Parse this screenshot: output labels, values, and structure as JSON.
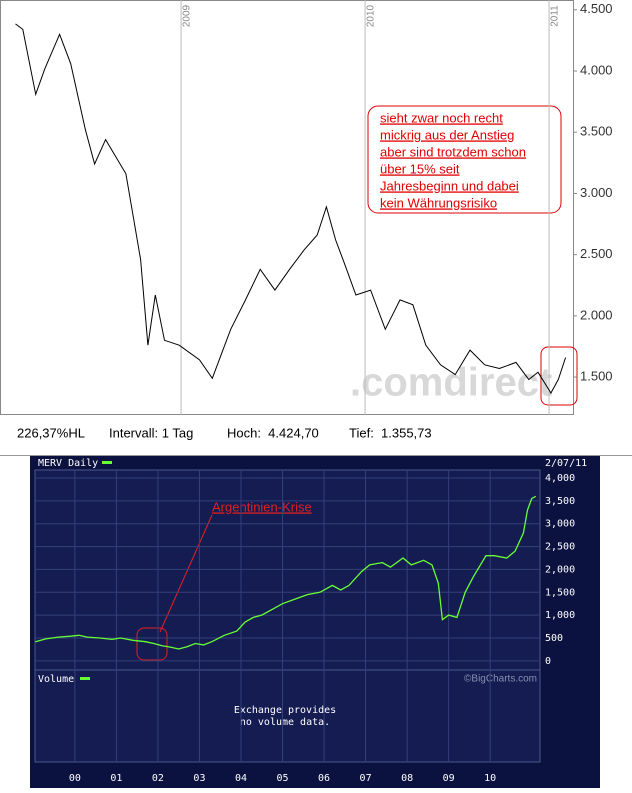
{
  "chart_data": [
    {
      "type": "line",
      "stats": [
        "226,37%HL",
        "Intervall: 1 Tag",
        "Hoch:  4.424,70",
        "Tief:  1.355,73"
      ],
      "annotation_lines": [
        "sieht zwar noch recht",
        "mickrig aus der Anstieg",
        "aber sind trotzdem schon",
        "über 15% seit",
        "Jahresbeginn und dabei",
        "kein Währungsrisiko"
      ],
      "watermark": ".comdirect",
      "xlim": [
        2008.016,
        2011.13
      ],
      "xticks": [
        2009,
        2010,
        2011
      ],
      "ylim": [
        1190,
        4580
      ],
      "yticks": [
        {
          "value": 1500,
          "label": "1.500"
        },
        {
          "value": 2000,
          "label": "2.000"
        },
        {
          "value": 2500,
          "label": "2.500"
        },
        {
          "value": 3000,
          "label": "3.000"
        },
        {
          "value": 3500,
          "label": "3.500"
        },
        {
          "value": 4000,
          "label": "4.000"
        },
        {
          "value": 4500,
          "label": "4.500"
        }
      ],
      "grid": true,
      "x": [
        2008.1,
        2008.14,
        2008.21,
        2008.26,
        2008.34,
        2008.4,
        2008.48,
        2008.53,
        2008.59,
        2008.7,
        2008.78,
        2008.82,
        2008.86,
        2008.91,
        2008.99,
        2009.1,
        2009.17,
        2009.27,
        2009.35,
        2009.43,
        2009.51,
        2009.59,
        2009.67,
        2009.74,
        2009.79,
        2009.84,
        2009.89,
        2009.95,
        2010.03,
        2010.11,
        2010.19,
        2010.26,
        2010.33,
        2010.41,
        2010.49,
        2010.57,
        2010.65,
        2010.73,
        2010.82,
        2010.89,
        2010.94,
        2011.01,
        2011.05,
        2011.09
      ],
      "series": [
        {
          "color": "#000000",
          "values": [
            4385,
            4340,
            3810,
            4020,
            4300,
            4060,
            3520,
            3240,
            3440,
            3160,
            2460,
            1760,
            2170,
            1800,
            1760,
            1640,
            1490,
            1890,
            2130,
            2380,
            2210,
            2380,
            2540,
            2660,
            2890,
            2620,
            2420,
            2170,
            2210,
            1890,
            2130,
            2090,
            1760,
            1600,
            1520,
            1720,
            1600,
            1570,
            1620,
            1480,
            1540,
            1370,
            1480,
            1660
          ]
        }
      ]
    },
    {
      "type": "line",
      "date": "2/07/11",
      "volume_label": "Volume",
      "volume_note": [
        "Exchange provides",
        "no volume data."
      ],
      "credit": "©BigCharts.com",
      "annotation": "Argentinien-Krise",
      "xlim": [
        1999.04,
        2011.2
      ],
      "xticks": [
        {
          "value": 2000,
          "label": "00"
        },
        {
          "value": 2001,
          "label": "01"
        },
        {
          "value": 2002,
          "label": "02"
        },
        {
          "value": 2003,
          "label": "03"
        },
        {
          "value": 2004,
          "label": "04"
        },
        {
          "value": 2005,
          "label": "05"
        },
        {
          "value": 2006,
          "label": "06"
        },
        {
          "value": 2007,
          "label": "07"
        },
        {
          "value": 2008,
          "label": "08"
        },
        {
          "value": 2009,
          "label": "09"
        },
        {
          "value": 2010,
          "label": "10"
        }
      ],
      "ylim": [
        -200,
        4175
      ],
      "yticks": [
        0,
        500,
        {
          "value": 1000,
          "label": "1,000"
        },
        {
          "value": 1500,
          "label": "1,500"
        },
        {
          "value": 2000,
          "label": "2,000"
        },
        {
          "value": 2500,
          "label": "2,500"
        },
        {
          "value": 3000,
          "label": "3,000"
        },
        {
          "value": 3500,
          "label": "3,500"
        },
        {
          "value": 4000,
          "label": "4,000"
        }
      ],
      "grid": true,
      "x": [
        1999.05,
        1999.3,
        1999.6,
        1999.9,
        2000.1,
        2000.3,
        2000.6,
        2000.9,
        2001.1,
        2001.4,
        2001.7,
        2001.9,
        2002.1,
        2002.3,
        2002.5,
        2002.7,
        2002.9,
        2003.1,
        2003.3,
        2003.6,
        2003.9,
        2004.1,
        2004.3,
        2004.5,
        2004.8,
        2005.0,
        2005.3,
        2005.6,
        2005.9,
        2006.2,
        2006.4,
        2006.6,
        2006.9,
        2007.1,
        2007.4,
        2007.6,
        2007.9,
        2008.1,
        2008.4,
        2008.6,
        2008.75,
        2008.85,
        2009.0,
        2009.2,
        2009.4,
        2009.6,
        2009.9,
        2010.1,
        2010.4,
        2010.6,
        2010.8,
        2010.9,
        2011.0,
        2011.1
      ],
      "series": [
        {
          "name": "MERV Daily",
          "color": "#66ff33",
          "values": [
            420,
            480,
            520,
            540,
            560,
            520,
            500,
            470,
            500,
            450,
            420,
            380,
            330,
            300,
            260,
            310,
            380,
            350,
            420,
            560,
            650,
            850,
            950,
            1000,
            1150,
            1250,
            1350,
            1450,
            1500,
            1650,
            1550,
            1650,
            1950,
            2100,
            2150,
            2050,
            2250,
            2100,
            2200,
            2100,
            1700,
            900,
            1000,
            950,
            1500,
            1850,
            2300,
            2300,
            2250,
            2400,
            2800,
            3300,
            3550,
            3600
          ]
        }
      ]
    }
  ]
}
